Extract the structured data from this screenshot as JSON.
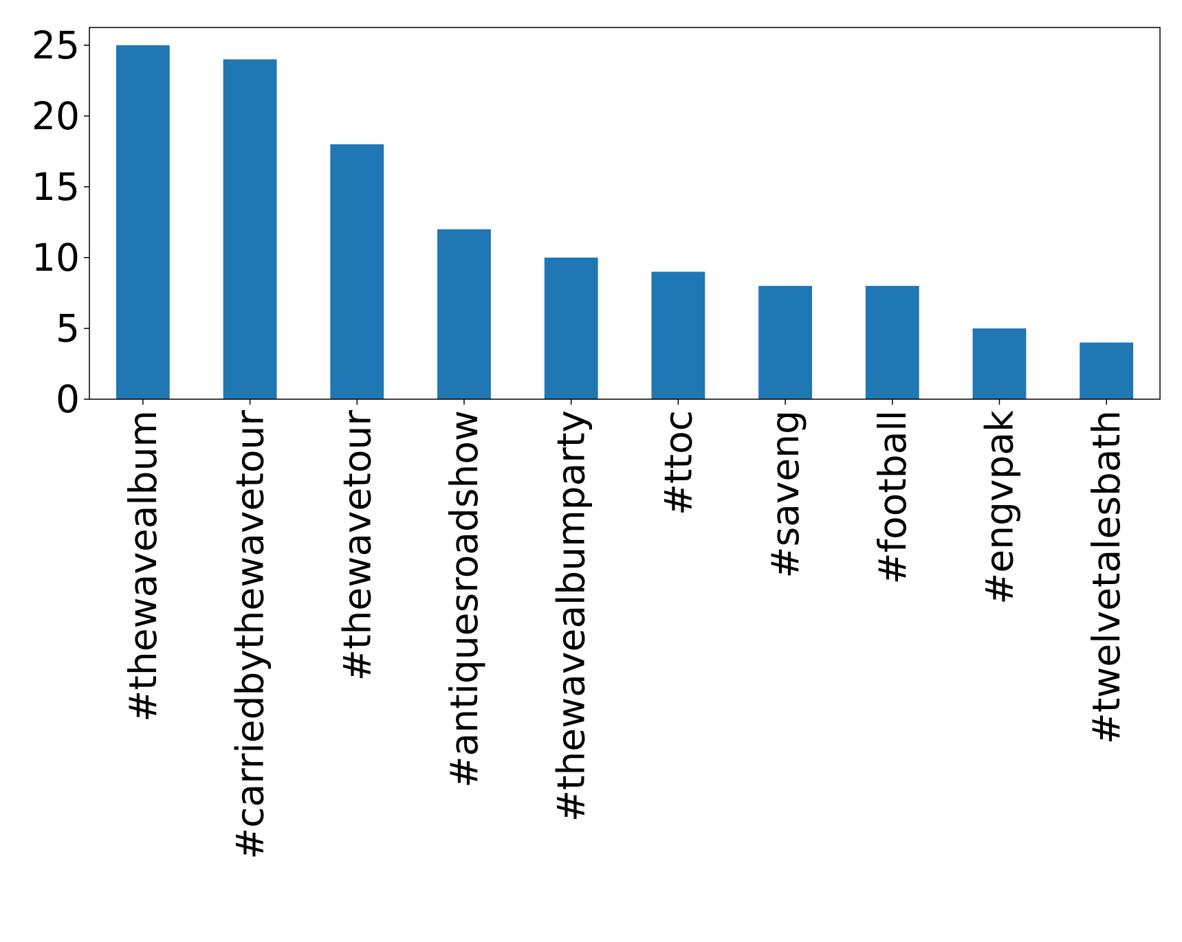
{
  "chart_data": {
    "type": "bar",
    "categories": [
      "#thewavealbum",
      "#carriedbythewavetour",
      "#thewavetour",
      "#antiquesroadshow",
      "#thewavealbumparty",
      "#ttoc",
      "#saveng",
      "#football",
      "#engvpak",
      "#twelvetalesbath"
    ],
    "values": [
      25,
      24,
      18,
      12,
      10,
      9,
      8,
      8,
      5,
      4
    ],
    "yticks": [
      "0",
      "5",
      "10",
      "15",
      "20",
      "25"
    ],
    "ylim": [
      0,
      26.25
    ],
    "title": "",
    "xlabel": "",
    "ylabel": "",
    "grid": false,
    "bar_color": "#1f77b4"
  }
}
